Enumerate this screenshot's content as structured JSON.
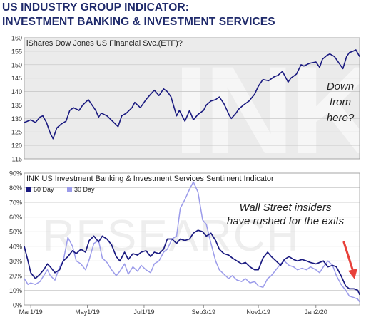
{
  "header": {
    "title_line1": "US INDUSTRY GROUP INDICATOR:",
    "title_line2": "INVESTMENT BANKING & INVESTMENT SERVICES"
  },
  "chart_data": [
    {
      "type": "line",
      "title": "iShares Dow Jones US Financial Svc.(ETF)?",
      "ylim": [
        115,
        160
      ],
      "yticks": [
        115,
        120,
        125,
        130,
        135,
        140,
        145,
        150,
        155,
        160
      ],
      "grid": "horizontal",
      "x_range": [
        "2019-02-22",
        "2020-02-18"
      ],
      "annotation": "Down\nfrom\nhere?",
      "color": "#1a1a80",
      "series": [
        {
          "points": [
            [
              "2019-02-22",
              128.5
            ],
            [
              "2019-03-01",
              129.5
            ],
            [
              "2019-03-06",
              128.5
            ],
            [
              "2019-03-11",
              130.5
            ],
            [
              "2019-03-14",
              131
            ],
            [
              "2019-03-18",
              128.5
            ],
            [
              "2019-03-22",
              124.5
            ],
            [
              "2019-03-25",
              122.5
            ],
            [
              "2019-03-29",
              126.5
            ],
            [
              "2019-04-03",
              128
            ],
            [
              "2019-04-08",
              129
            ],
            [
              "2019-04-12",
              133
            ],
            [
              "2019-04-16",
              134
            ],
            [
              "2019-04-22",
              133
            ],
            [
              "2019-04-26",
              135
            ],
            [
              "2019-05-02",
              137
            ],
            [
              "2019-05-06",
              135
            ],
            [
              "2019-05-10",
              133
            ],
            [
              "2019-05-13",
              130.5
            ],
            [
              "2019-05-16",
              132
            ],
            [
              "2019-05-22",
              131
            ],
            [
              "2019-05-28",
              129
            ],
            [
              "2019-06-03",
              127
            ],
            [
              "2019-06-07",
              131
            ],
            [
              "2019-06-12",
              132
            ],
            [
              "2019-06-18",
              134
            ],
            [
              "2019-06-21",
              136
            ],
            [
              "2019-06-27",
              134
            ],
            [
              "2019-07-03",
              137
            ],
            [
              "2019-07-08",
              139
            ],
            [
              "2019-07-12",
              140.5
            ],
            [
              "2019-07-17",
              138.5
            ],
            [
              "2019-07-22",
              141
            ],
            [
              "2019-07-26",
              140
            ],
            [
              "2019-07-30",
              138
            ],
            [
              "2019-08-05",
              131
            ],
            [
              "2019-08-08",
              133
            ],
            [
              "2019-08-14",
              129
            ],
            [
              "2019-08-19",
              133
            ],
            [
              "2019-08-23",
              129.5
            ],
            [
              "2019-08-28",
              131.5
            ],
            [
              "2019-09-03",
              133
            ],
            [
              "2019-09-06",
              135
            ],
            [
              "2019-09-11",
              136.5
            ],
            [
              "2019-09-16",
              137
            ],
            [
              "2019-09-20",
              138
            ],
            [
              "2019-09-25",
              135.5
            ],
            [
              "2019-10-01",
              131
            ],
            [
              "2019-10-03",
              130
            ],
            [
              "2019-10-08",
              132
            ],
            [
              "2019-10-11",
              133.5
            ],
            [
              "2019-10-16",
              135
            ],
            [
              "2019-10-22",
              136.5
            ],
            [
              "2019-10-28",
              139
            ],
            [
              "2019-11-01",
              142
            ],
            [
              "2019-11-06",
              144.5
            ],
            [
              "2019-11-12",
              144
            ],
            [
              "2019-11-18",
              145.5
            ],
            [
              "2019-11-22",
              146
            ],
            [
              "2019-11-27",
              147.5
            ],
            [
              "2019-12-03",
              143.5
            ],
            [
              "2019-12-06",
              145
            ],
            [
              "2019-12-12",
              146.5
            ],
            [
              "2019-12-17",
              150
            ],
            [
              "2019-12-20",
              149.5
            ],
            [
              "2019-12-26",
              150.5
            ],
            [
              "2020-01-02",
              151
            ],
            [
              "2020-01-06",
              149
            ],
            [
              "2020-01-09",
              152
            ],
            [
              "2020-01-14",
              153.5
            ],
            [
              "2020-01-17",
              154
            ],
            [
              "2020-01-22",
              153
            ],
            [
              "2020-01-27",
              150.5
            ],
            [
              "2020-01-31",
              148.5
            ],
            [
              "2020-02-04",
              153
            ],
            [
              "2020-02-07",
              154.5
            ],
            [
              "2020-02-11",
              155
            ],
            [
              "2020-02-14",
              155.5
            ],
            [
              "2020-02-18",
              153
            ]
          ]
        }
      ]
    },
    {
      "type": "line",
      "title": "INK US Investment Banking & Investment Services Sentiment Indicator",
      "ylim": [
        0,
        90
      ],
      "yticks": [
        "0%",
        "10%",
        "20%",
        "30%",
        "40%",
        "50%",
        "60%",
        "70%",
        "80%",
        "90%"
      ],
      "grid": "horizontal",
      "x_range": [
        "2019-02-22",
        "2020-02-18"
      ],
      "xticks": [
        {
          "label": "Mar1/19",
          "date": "2019-03-01"
        },
        {
          "label": "May1/19",
          "date": "2019-05-01"
        },
        {
          "label": "Jul1/19",
          "date": "2019-07-01"
        },
        {
          "label": "Sep3/19",
          "date": "2019-09-03"
        },
        {
          "label": "Nov1/19",
          "date": "2019-11-01"
        },
        {
          "label": "Jan2/20",
          "date": "2020-01-02"
        }
      ],
      "legend": "top-left",
      "annotation": "Wall Street insiders\nhave rushed for the exits",
      "arrow_color": "#e8413a",
      "series": [
        {
          "name": "60 Day",
          "color": "#1a1a80",
          "points": [
            [
              "2019-02-22",
              40
            ],
            [
              "2019-02-26",
              30
            ],
            [
              "2019-03-01",
              22
            ],
            [
              "2019-03-06",
              18
            ],
            [
              "2019-03-11",
              21
            ],
            [
              "2019-03-15",
              24
            ],
            [
              "2019-03-19",
              28
            ],
            [
              "2019-03-22",
              26
            ],
            [
              "2019-03-27",
              22
            ],
            [
              "2019-04-01",
              24
            ],
            [
              "2019-04-05",
              30
            ],
            [
              "2019-04-10",
              33
            ],
            [
              "2019-04-15",
              37
            ],
            [
              "2019-04-19",
              35
            ],
            [
              "2019-04-24",
              38
            ],
            [
              "2019-04-29",
              36
            ],
            [
              "2019-05-03",
              44
            ],
            [
              "2019-05-08",
              47
            ],
            [
              "2019-05-13",
              43
            ],
            [
              "2019-05-17",
              47
            ],
            [
              "2019-05-22",
              45
            ],
            [
              "2019-05-27",
              41
            ],
            [
              "2019-06-01",
              33
            ],
            [
              "2019-06-05",
              30
            ],
            [
              "2019-06-10",
              36
            ],
            [
              "2019-06-14",
              31
            ],
            [
              "2019-06-19",
              35
            ],
            [
              "2019-06-24",
              34
            ],
            [
              "2019-06-28",
              36
            ],
            [
              "2019-07-03",
              37
            ],
            [
              "2019-07-08",
              33
            ],
            [
              "2019-07-12",
              36
            ],
            [
              "2019-07-17",
              35
            ],
            [
              "2019-07-22",
              38
            ],
            [
              "2019-07-26",
              45
            ],
            [
              "2019-07-31",
              45
            ],
            [
              "2019-08-05",
              42
            ],
            [
              "2019-08-09",
              45
            ],
            [
              "2019-08-14",
              44
            ],
            [
              "2019-08-19",
              45
            ],
            [
              "2019-08-23",
              49
            ],
            [
              "2019-08-28",
              51
            ],
            [
              "2019-09-02",
              50
            ],
            [
              "2019-09-06",
              47
            ],
            [
              "2019-09-11",
              49
            ],
            [
              "2019-09-16",
              44
            ],
            [
              "2019-09-20",
              38
            ],
            [
              "2019-09-25",
              35
            ],
            [
              "2019-09-30",
              34
            ],
            [
              "2019-10-04",
              32
            ],
            [
              "2019-10-09",
              30
            ],
            [
              "2019-10-14",
              28
            ],
            [
              "2019-10-18",
              29
            ],
            [
              "2019-10-23",
              26
            ],
            [
              "2019-10-28",
              24
            ],
            [
              "2019-11-01",
              24
            ],
            [
              "2019-11-06",
              32
            ],
            [
              "2019-11-11",
              36
            ],
            [
              "2019-11-15",
              33
            ],
            [
              "2019-11-20",
              30
            ],
            [
              "2019-11-25",
              27
            ],
            [
              "2019-11-29",
              31
            ],
            [
              "2019-12-04",
              33
            ],
            [
              "2019-12-09",
              31
            ],
            [
              "2019-12-13",
              30
            ],
            [
              "2019-12-18",
              31
            ],
            [
              "2019-12-23",
              30
            ],
            [
              "2019-12-27",
              29
            ],
            [
              "2020-01-02",
              28
            ],
            [
              "2020-01-06",
              29
            ],
            [
              "2020-01-10",
              30
            ],
            [
              "2020-01-15",
              26
            ],
            [
              "2020-01-20",
              27
            ],
            [
              "2020-01-24",
              26
            ],
            [
              "2020-01-29",
              20
            ],
            [
              "2020-02-03",
              13
            ],
            [
              "2020-02-07",
              11
            ],
            [
              "2020-02-12",
              11
            ],
            [
              "2020-02-16",
              10
            ],
            [
              "2020-02-18",
              7
            ]
          ]
        },
        {
          "name": "30 Day",
          "color": "#9b9bea",
          "points": [
            [
              "2019-02-22",
              18
            ],
            [
              "2019-02-26",
              14
            ],
            [
              "2019-03-01",
              15
            ],
            [
              "2019-03-06",
              14
            ],
            [
              "2019-03-11",
              16
            ],
            [
              "2019-03-15",
              20
            ],
            [
              "2019-03-19",
              24
            ],
            [
              "2019-03-22",
              20
            ],
            [
              "2019-03-27",
              17
            ],
            [
              "2019-04-01",
              26
            ],
            [
              "2019-04-05",
              30
            ],
            [
              "2019-04-10",
              46
            ],
            [
              "2019-04-15",
              40
            ],
            [
              "2019-04-19",
              30
            ],
            [
              "2019-04-24",
              28
            ],
            [
              "2019-04-29",
              24
            ],
            [
              "2019-05-03",
              31
            ],
            [
              "2019-05-08",
              42
            ],
            [
              "2019-05-13",
              44
            ],
            [
              "2019-05-17",
              32
            ],
            [
              "2019-05-22",
              29
            ],
            [
              "2019-05-27",
              24
            ],
            [
              "2019-06-01",
              20
            ],
            [
              "2019-06-05",
              23
            ],
            [
              "2019-06-10",
              28
            ],
            [
              "2019-06-14",
              21
            ],
            [
              "2019-06-19",
              26
            ],
            [
              "2019-06-24",
              23
            ],
            [
              "2019-06-28",
              27
            ],
            [
              "2019-07-03",
              24
            ],
            [
              "2019-07-08",
              22
            ],
            [
              "2019-07-12",
              28
            ],
            [
              "2019-07-17",
              30
            ],
            [
              "2019-07-22",
              36
            ],
            [
              "2019-07-26",
              38
            ],
            [
              "2019-07-31",
              45
            ],
            [
              "2019-08-05",
              47
            ],
            [
              "2019-08-09",
              66
            ],
            [
              "2019-08-14",
              72
            ],
            [
              "2019-08-19",
              79
            ],
            [
              "2019-08-23",
              84
            ],
            [
              "2019-08-28",
              77
            ],
            [
              "2019-09-02",
              58
            ],
            [
              "2019-09-06",
              55
            ],
            [
              "2019-09-11",
              42
            ],
            [
              "2019-09-16",
              30
            ],
            [
              "2019-09-20",
              24
            ],
            [
              "2019-09-25",
              21
            ],
            [
              "2019-09-30",
              18
            ],
            [
              "2019-10-04",
              20
            ],
            [
              "2019-10-09",
              17
            ],
            [
              "2019-10-14",
              16
            ],
            [
              "2019-10-18",
              18
            ],
            [
              "2019-10-23",
              15
            ],
            [
              "2019-10-28",
              16
            ],
            [
              "2019-11-01",
              13
            ],
            [
              "2019-11-06",
              12
            ],
            [
              "2019-11-11",
              18
            ],
            [
              "2019-11-15",
              20
            ],
            [
              "2019-11-20",
              24
            ],
            [
              "2019-11-25",
              28
            ],
            [
              "2019-11-29",
              30
            ],
            [
              "2019-12-04",
              27
            ],
            [
              "2019-12-09",
              26
            ],
            [
              "2019-12-13",
              24
            ],
            [
              "2019-12-18",
              25
            ],
            [
              "2019-12-23",
              24
            ],
            [
              "2019-12-27",
              26
            ],
            [
              "2020-01-02",
              24
            ],
            [
              "2020-01-06",
              22
            ],
            [
              "2020-01-10",
              26
            ],
            [
              "2020-01-15",
              30
            ],
            [
              "2020-01-20",
              27
            ],
            [
              "2020-01-24",
              20
            ],
            [
              "2020-01-29",
              14
            ],
            [
              "2020-02-03",
              10
            ],
            [
              "2020-02-07",
              6
            ],
            [
              "2020-02-12",
              5
            ],
            [
              "2020-02-16",
              4
            ],
            [
              "2020-02-18",
              2
            ]
          ]
        }
      ]
    }
  ]
}
